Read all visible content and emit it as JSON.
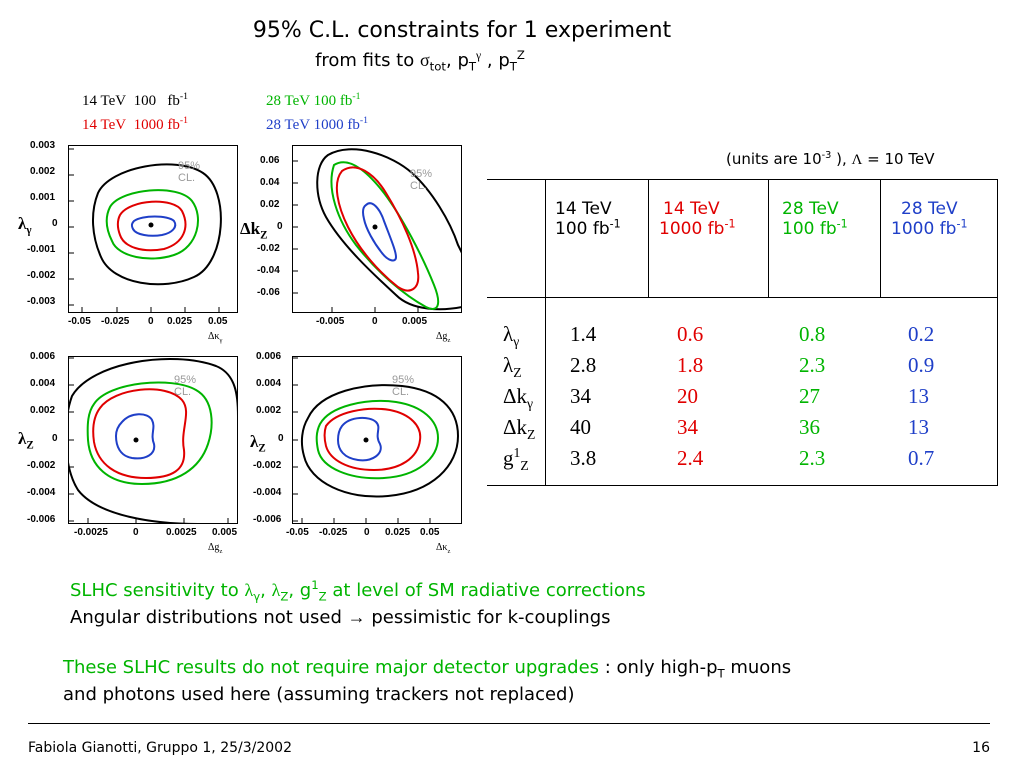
{
  "slide": {
    "title": "95% C.L. constraints for 1 experiment",
    "subtitle_prefix": "from fits to ",
    "subtitle_sigma": "σ",
    "subtitle_tot": "tot",
    "subtitle_mid": ", p",
    "subtitle_T1": "T",
    "subtitle_gamma": "γ",
    "subtitle_mid2": " , p",
    "subtitle_T2": "T",
    "subtitle_Z": "Z"
  },
  "legend": {
    "black": {
      "energy": "14 TeV",
      "lumi": "100",
      "unit": "fb",
      "exp": "-1"
    },
    "red": {
      "energy": "14 TeV",
      "lumi": "1000",
      "unit": "fb",
      "exp": "-1"
    },
    "green": {
      "energy": "28 TeV",
      "lumi": "100",
      "unit": "fb",
      "exp": "-1"
    },
    "blue": {
      "energy": "28 TeV",
      "lumi": "1000",
      "unit": "fb",
      "exp": "-1"
    }
  },
  "colors": {
    "black": "#000000",
    "red": "#e00000",
    "green": "#00b400",
    "blue": "#1f3fc8"
  },
  "plots": [
    {
      "cl_label": "95% CL.",
      "ylabel": "λ",
      "ylabel_sub": "γ",
      "yticks": [
        "0.003",
        "0.002",
        "0.001",
        "0",
        "-0.001",
        "-0.002",
        "-0.003"
      ],
      "xticks": [
        "-0.05",
        "-0.025",
        "0",
        "0.025",
        "0.05"
      ],
      "xlabel": "Δκ",
      "xlabel_sub": "γ"
    },
    {
      "cl_label": "95% CL.",
      "ylabel": "Δk",
      "ylabel_sub": "Z",
      "yticks": [
        "0.06",
        "0.04",
        "0.02",
        "0",
        "-0.02",
        "-0.04",
        "-0.06"
      ],
      "xticks": [
        "-0.005",
        "0",
        "0.005"
      ],
      "xlabel": "Δg",
      "xlabel_sub": "z"
    },
    {
      "cl_label": "95% CL.",
      "ylabel": "λ",
      "ylabel_sub": "Z",
      "yticks": [
        "0.006",
        "0.004",
        "0.002",
        "0",
        "-0.002",
        "-0.004",
        "-0.006"
      ],
      "xticks": [
        "-0.0025",
        "0",
        "0.0025",
        "0.005"
      ],
      "xlabel": "Δg",
      "xlabel_sub": "z"
    },
    {
      "cl_label": "95% CL.",
      "ylabel": "λ",
      "ylabel_sub": "Z",
      "yticks": [
        "0.006",
        "0.004",
        "0.002",
        "0",
        "-0.002",
        "-0.004",
        "-0.006"
      ],
      "xticks": [
        "-0.05",
        "-0.025",
        "0",
        "0.025",
        "0.05"
      ],
      "xlabel": "Δκ",
      "xlabel_sub": "z"
    }
  ],
  "units_note": {
    "prefix": "(units are 10",
    "exp": "-3",
    "mid": " ), ",
    "lambda": "Λ",
    "suffix": " = 10 TeV"
  },
  "table": {
    "headers": [
      {
        "energy": "14 TeV",
        "lumi": "100 fb",
        "exp": "-1",
        "color": "black"
      },
      {
        "energy": "14 TeV",
        "lumi": "1000 fb",
        "exp": "-1",
        "color": "red"
      },
      {
        "energy": "28 TeV",
        "lumi": "100 fb",
        "exp": "-1",
        "color": "green"
      },
      {
        "energy": "28 TeV",
        "lumi": "1000 fb",
        "exp": "-1",
        "color": "blue"
      }
    ],
    "rows": [
      {
        "sym": "λ",
        "sub": "γ",
        "sup": "",
        "values": [
          "1.4",
          "0.6",
          "0.8",
          "0.2"
        ]
      },
      {
        "sym": "λ",
        "sub": "Z",
        "sup": "",
        "values": [
          "2.8",
          "1.8",
          "2.3",
          "0.9"
        ]
      },
      {
        "sym": "Δk",
        "sub": "γ",
        "sup": "",
        "values": [
          "34",
          "20",
          "27",
          "13"
        ]
      },
      {
        "sym": "Δk",
        "sub": "Z",
        "sup": "",
        "values": [
          "40",
          "34",
          "36",
          "13"
        ]
      },
      {
        "sym": "g",
        "sub": "Z",
        "sup": "1",
        "values": [
          "3.8",
          "2.4",
          "2.3",
          "0.7"
        ]
      }
    ]
  },
  "notes": {
    "line1_a": "SLHC sensitivity to ",
    "line1_l1": "λ",
    "line1_l1sub": "γ",
    "line1_c1": ", ",
    "line1_l2": "λ",
    "line1_l2sub": "Z",
    "line1_c2": ", g",
    "line1_g_sup": "1",
    "line1_g_sub": "Z",
    "line1_b": " at level of SM radiative corrections",
    "line2_a": "Angular distributions not used ",
    "line2_arrow": "→",
    "line2_b": " pessimistic for k-couplings",
    "line3_green": "These SLHC results do not require major detector upgrades",
    "line3_black": " : only high-p",
    "line3_T": "T",
    "line3_end": " muons",
    "line4": "and photons used  here (assuming trackers  not replaced)"
  },
  "footer": {
    "left": "Fabiola Gianotti,  Gruppo 1, 25/3/2002",
    "right": "16"
  }
}
